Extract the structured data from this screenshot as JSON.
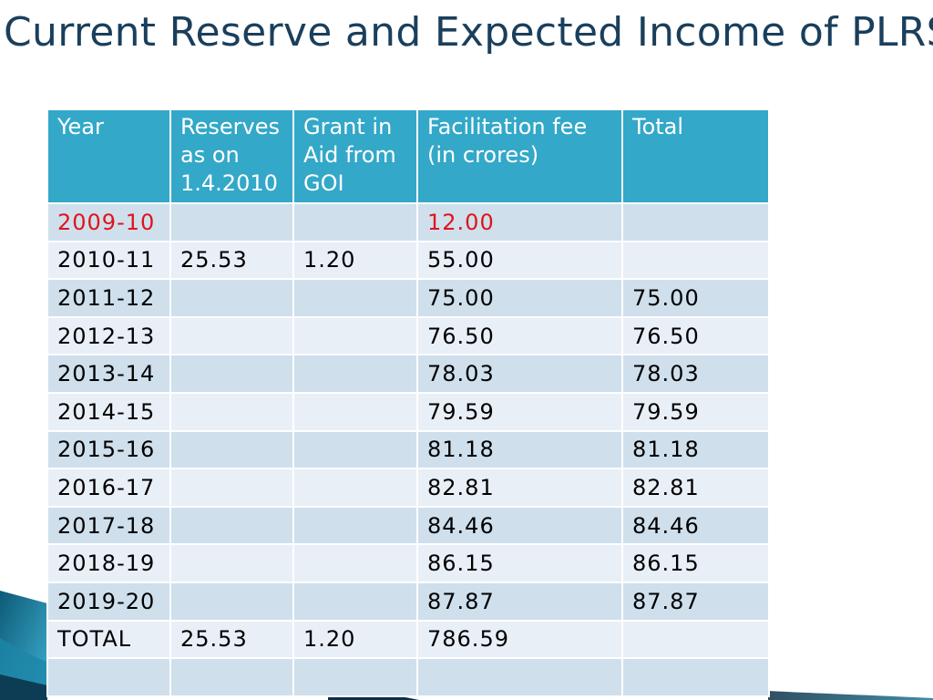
{
  "title": "Current Reserve and Expected Income of PLRS",
  "table": {
    "headers": [
      "Year",
      "Reserves as on 1.4.2010",
      "Grant in Aid from GOI",
      "Facilitation fee (in crores)",
      "Total"
    ],
    "rows": [
      {
        "cells": [
          "2009-10",
          "",
          "",
          "12.00",
          ""
        ],
        "highlight": true
      },
      {
        "cells": [
          "2010-11",
          "25.53",
          "1.20",
          "55.00",
          ""
        ]
      },
      {
        "cells": [
          "2011-12",
          "",
          "",
          "75.00",
          "75.00"
        ]
      },
      {
        "cells": [
          "2012-13",
          "",
          "",
          "76.50",
          "76.50"
        ]
      },
      {
        "cells": [
          "2013-14",
          "",
          "",
          "78.03",
          "78.03"
        ]
      },
      {
        "cells": [
          "2014-15",
          "",
          "",
          "79.59",
          "79.59"
        ]
      },
      {
        "cells": [
          "2015-16",
          "",
          "",
          "81.18",
          "81.18"
        ]
      },
      {
        "cells": [
          "2016-17",
          "",
          "",
          "82.81",
          "82.81"
        ]
      },
      {
        "cells": [
          "2017-18",
          "",
          "",
          "84.46",
          "84.46"
        ]
      },
      {
        "cells": [
          "2018-19",
          "",
          "",
          "86.15",
          "86.15"
        ]
      },
      {
        "cells": [
          "2019-20",
          "",
          "",
          "87.87",
          "87.87"
        ]
      },
      {
        "cells": [
          "TOTAL",
          "25.53",
          "1.20",
          "786.59",
          ""
        ]
      },
      {
        "cells": [
          "",
          "",
          "",
          "",
          ""
        ]
      }
    ]
  },
  "colors": {
    "title": "#1a3f5c",
    "header_bg": "#33a8c8",
    "row_dark": "#cfdfec",
    "row_light": "#e9eff7",
    "highlight_text": "#e0141c"
  }
}
